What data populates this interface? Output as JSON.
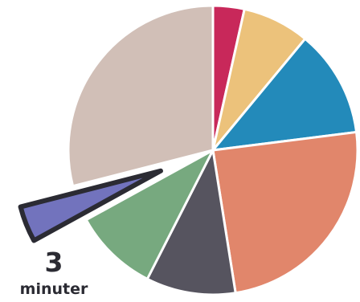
{
  "chart_data": {
    "type": "pie",
    "start_angle_deg": 0,
    "direction": "clockwise",
    "slices": [
      {
        "value": 3.5,
        "color": "#c8285a"
      },
      {
        "value": 7.5,
        "color": "#ecc27b"
      },
      {
        "value": 12,
        "color": "#238aba"
      },
      {
        "value": 24.5,
        "color": "#e1866b"
      },
      {
        "value": 10,
        "color": "#56545f"
      },
      {
        "value": 9.5,
        "color": "#77a97f"
      },
      {
        "value": 4,
        "color": "#7273bd",
        "exploded": true,
        "outline": "#2b2b33"
      },
      {
        "value": 29,
        "color": "#d1bfb7"
      }
    ],
    "callout": {
      "slice_index": 6,
      "value": "3",
      "unit": "minuter"
    }
  }
}
